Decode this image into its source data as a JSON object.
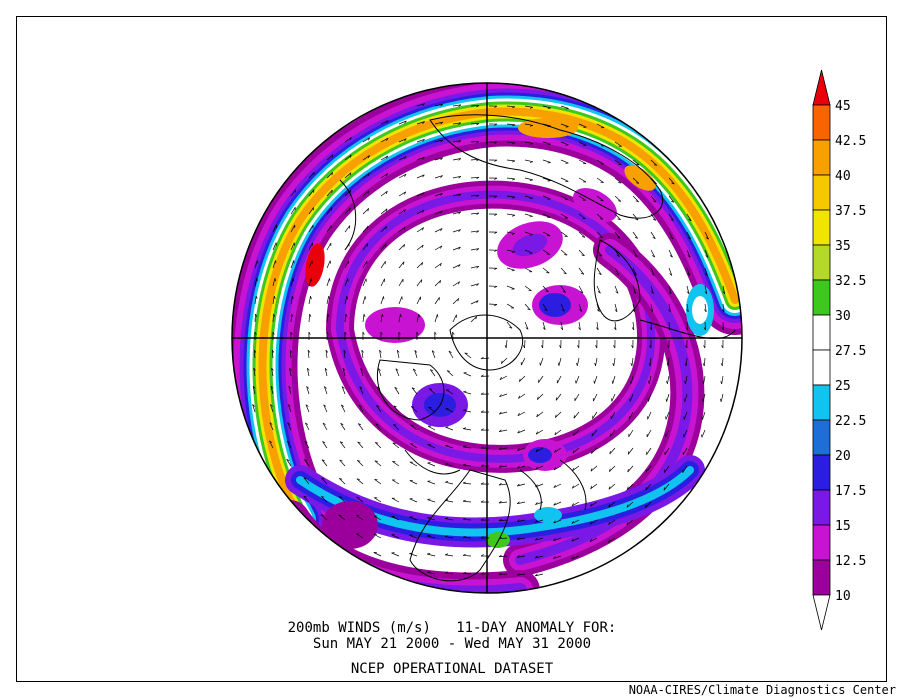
{
  "title_line1": "200mb WINDS (m/s)   11-DAY ANOMALY FOR:",
  "title_line2": "Sun MAY 21 2000 - Wed MAY 31 2000",
  "dataset": "NCEP OPERATIONAL DATASET",
  "credit": "NOAA-CIRES/Climate Diagnostics Center",
  "projection": "north-polar-stereographic",
  "variable": "200mb wind speed anomaly",
  "units": "m/s",
  "colorbar": {
    "levels": [
      "45",
      "42.5",
      "40",
      "37.5",
      "35",
      "32.5",
      "30",
      "27.5",
      "25",
      "22.5",
      "20",
      "17.5",
      "15",
      "12.5",
      "10"
    ],
    "bins": [
      {
        "range": ">45",
        "color": "#e8000b"
      },
      {
        "range": "42.5-45",
        "color": "#fa6400"
      },
      {
        "range": "40-42.5",
        "color": "#f8a000"
      },
      {
        "range": "37.5-40",
        "color": "#f5c800"
      },
      {
        "range": "35-37.5",
        "color": "#f0e400"
      },
      {
        "range": "32.5-35",
        "color": "#b4d928"
      },
      {
        "range": "30-32.5",
        "color": "#3ec81e"
      },
      {
        "range": "27.5-30",
        "color": "#ffffff"
      },
      {
        "range": "25-27.5",
        "color": "#ffffff"
      },
      {
        "range": "22.5-25",
        "color": "#11c4ef"
      },
      {
        "range": "20-22.5",
        "color": "#1e6ed8"
      },
      {
        "range": "17.5-20",
        "color": "#2c1ee0"
      },
      {
        "range": "15-17.5",
        "color": "#7a18e6"
      },
      {
        "range": "12.5-15",
        "color": "#c814d2"
      },
      {
        "range": "10-12.5",
        "color": "#9c009c"
      },
      {
        "range": "<10",
        "color": "#ffffff"
      }
    ]
  }
}
